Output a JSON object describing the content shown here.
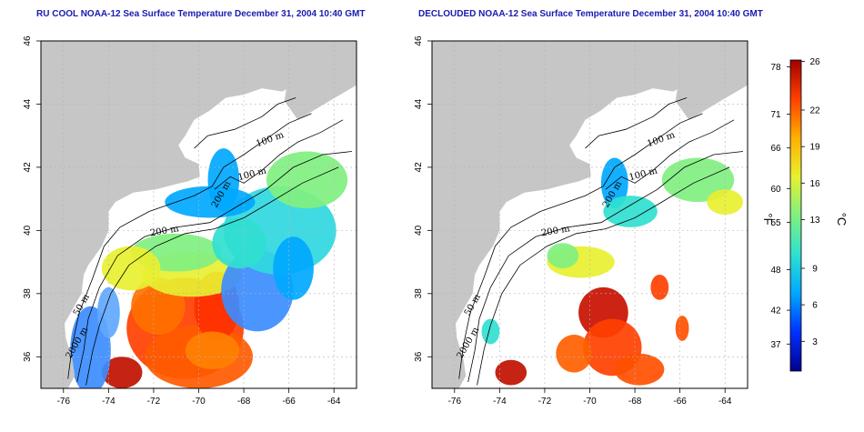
{
  "panels": {
    "left": {
      "title": "RU COOL NOAA-12 Sea Surface Temperature December 31, 2004 10:40 GMT"
    },
    "right": {
      "title": "DECLOUDED NOAA-12 Sea Surface Temperature December 31, 2004 10:40 GMT"
    }
  },
  "map": {
    "lon_range": [
      -77,
      -63
    ],
    "lat_range": [
      35,
      46
    ],
    "lon_ticks": [
      -76,
      -74,
      -72,
      -70,
      -68,
      -66,
      -64
    ],
    "lat_ticks": [
      36,
      38,
      40,
      42,
      44,
      46
    ],
    "contour_labels": [
      "100 m",
      "100 m",
      "200 m",
      "200 m",
      "50 m",
      "2000 m"
    ],
    "colors": {
      "land": "#c6c6c6",
      "ocean": "#ffffff",
      "contour": "#000000",
      "grid": "#b4b4b4"
    }
  },
  "colorbar": {
    "fahrenheit_ticks": [
      "78",
      "71",
      "66",
      "60",
      "55",
      "48",
      "42",
      "37"
    ],
    "celsius_ticks": [
      "26",
      "22",
      "19",
      "16",
      "13",
      "9",
      "6",
      "3"
    ],
    "fahrenheit_unit": "°F",
    "celsius_unit": "°C",
    "colors": [
      "#00008c",
      "#0030ff",
      "#00a8ff",
      "#30e0d0",
      "#80f080",
      "#e8f030",
      "#ffb000",
      "#ff4000",
      "#a00000"
    ]
  }
}
